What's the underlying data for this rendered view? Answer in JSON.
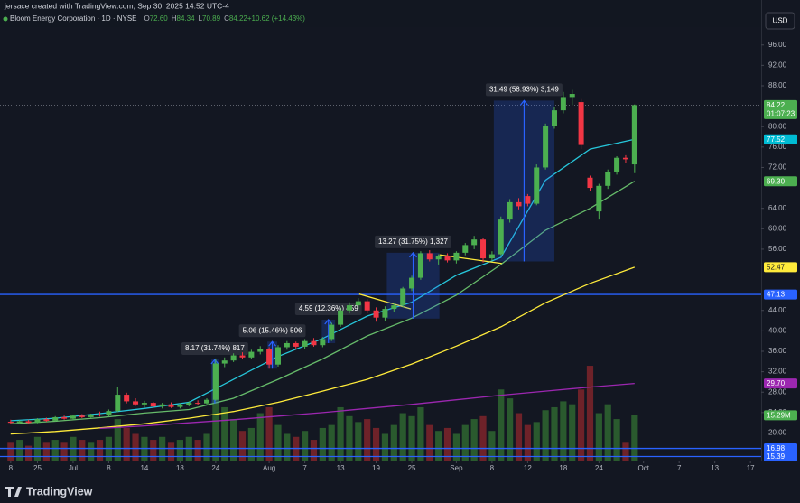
{
  "header": {
    "credit": "jersace created with TradingView.com, Sep 30, 2025 14:52 UTC-4",
    "symbol": "Bloom Energy Corporation · 1D · NYSE",
    "ohlc": [
      {
        "key": "O",
        "value": "72.60"
      },
      {
        "key": "H",
        "value": "84.34"
      },
      {
        "key": "L",
        "value": "70.89"
      },
      {
        "key": "C",
        "value": "84.22"
      },
      {
        "key": "",
        "value": "+10.62 (+14.43%)"
      }
    ],
    "currency": "USD"
  },
  "brand": "TradingView",
  "chart_data": {
    "type": "candlestick",
    "xlim": [
      -1.2,
      84.2
    ],
    "ylim": [
      14.6,
      104.8
    ],
    "grid": false,
    "up_color": "#4caf50",
    "down_color": "#f23645",
    "xticks": [
      {
        "value": 0,
        "label": "8"
      },
      {
        "value": 3,
        "label": "25"
      },
      {
        "value": 7,
        "label": "Jul"
      },
      {
        "value": 11,
        "label": "8"
      },
      {
        "value": 15,
        "label": "14"
      },
      {
        "value": 19,
        "label": "18"
      },
      {
        "value": 23,
        "label": "24"
      },
      {
        "value": 29,
        "label": "Aug"
      },
      {
        "value": 33,
        "label": "7"
      },
      {
        "value": 37,
        "label": "13"
      },
      {
        "value": 41,
        "label": "19"
      },
      {
        "value": 45,
        "label": "25"
      },
      {
        "value": 50,
        "label": "Sep"
      },
      {
        "value": 54,
        "label": "8"
      },
      {
        "value": 58,
        "label": "12"
      },
      {
        "value": 62,
        "label": "18"
      },
      {
        "value": 66,
        "label": "24"
      },
      {
        "value": 71,
        "label": "Oct"
      },
      {
        "value": 75,
        "label": "7"
      },
      {
        "value": 79,
        "label": "13"
      },
      {
        "value": 83,
        "label": "17"
      }
    ],
    "yticks": [
      {
        "value": 20,
        "label": "20.00"
      },
      {
        "value": 24,
        "label": "24.00"
      },
      {
        "value": 28,
        "label": "28.00"
      },
      {
        "value": 32,
        "label": "32.00"
      },
      {
        "value": 36,
        "label": "36.00"
      },
      {
        "value": 40,
        "label": "40.00"
      },
      {
        "value": 44,
        "label": "44.00"
      },
      {
        "value": 56,
        "label": "56.00"
      },
      {
        "value": 60,
        "label": "60.00"
      },
      {
        "value": 64,
        "label": "64.00"
      },
      {
        "value": 72,
        "label": "72.00"
      },
      {
        "value": 76,
        "label": "76.00"
      },
      {
        "value": 80,
        "label": "80.00"
      },
      {
        "value": 88,
        "label": "88.00"
      },
      {
        "value": 92,
        "label": "92.00"
      },
      {
        "value": 96,
        "label": "96.00"
      }
    ],
    "candles": [
      [
        22.2,
        22.6,
        21.8,
        22.0
      ],
      [
        22.0,
        22.5,
        21.7,
        22.3
      ],
      [
        22.3,
        22.6,
        21.8,
        22.0
      ],
      [
        22.0,
        22.9,
        21.9,
        22.7
      ],
      [
        22.7,
        23.0,
        22.2,
        22.4
      ],
      [
        22.4,
        23.3,
        22.3,
        23.1
      ],
      [
        23.1,
        23.4,
        22.6,
        22.8
      ],
      [
        22.8,
        23.6,
        22.7,
        23.4
      ],
      [
        23.4,
        23.7,
        22.9,
        23.1
      ],
      [
        23.1,
        23.8,
        23.0,
        23.6
      ],
      [
        23.6,
        24.2,
        23.2,
        23.5
      ],
      [
        23.5,
        24.6,
        23.2,
        24.3
      ],
      [
        24.3,
        29.0,
        24.1,
        27.5
      ],
      [
        27.5,
        27.9,
        25.8,
        26.2
      ],
      [
        26.2,
        26.8,
        25.3,
        25.6
      ],
      [
        25.6,
        26.3,
        25.0,
        25.9
      ],
      [
        25.9,
        26.1,
        24.9,
        25.2
      ],
      [
        25.2,
        25.9,
        24.8,
        25.6
      ],
      [
        25.6,
        26.0,
        24.9,
        25.1
      ],
      [
        25.1,
        25.8,
        24.8,
        25.5
      ],
      [
        25.5,
        26.2,
        25.2,
        25.9
      ],
      [
        25.9,
        26.4,
        25.5,
        25.8
      ],
      [
        25.8,
        26.8,
        25.6,
        26.5
      ],
      [
        26.5,
        34.6,
        26.3,
        33.6
      ],
      [
        33.6,
        34.8,
        32.9,
        34.2
      ],
      [
        34.2,
        35.6,
        33.9,
        35.2
      ],
      [
        35.2,
        35.8,
        34.4,
        34.8
      ],
      [
        34.8,
        36.3,
        34.5,
        35.9
      ],
      [
        35.9,
        37.0,
        35.4,
        36.4
      ],
      [
        36.4,
        36.8,
        32.6,
        33.4
      ],
      [
        33.4,
        37.2,
        33.0,
        36.8
      ],
      [
        36.8,
        38.0,
        36.3,
        37.6
      ],
      [
        37.6,
        37.9,
        36.4,
        36.9
      ],
      [
        36.9,
        38.4,
        36.5,
        38.0
      ],
      [
        38.0,
        38.6,
        36.9,
        37.2
      ],
      [
        37.2,
        38.8,
        36.8,
        38.4
      ],
      [
        38.4,
        41.6,
        38.0,
        41.2
      ],
      [
        41.2,
        44.6,
        40.8,
        44.0
      ],
      [
        44.0,
        45.6,
        43.4,
        45.0
      ],
      [
        45.0,
        46.4,
        44.3,
        45.8
      ],
      [
        45.8,
        46.2,
        43.4,
        44.0
      ],
      [
        44.0,
        44.6,
        41.8,
        42.6
      ],
      [
        42.6,
        44.8,
        42.0,
        44.3
      ],
      [
        44.3,
        45.4,
        43.7,
        45.0
      ],
      [
        45.0,
        48.6,
        44.6,
        48.3
      ],
      [
        48.3,
        50.8,
        47.8,
        50.4
      ],
      [
        50.4,
        55.6,
        50.0,
        55.2
      ],
      [
        55.2,
        55.8,
        53.6,
        54.0
      ],
      [
        54.0,
        55.0,
        53.0,
        54.6
      ],
      [
        54.6,
        55.2,
        53.4,
        53.8
      ],
      [
        53.8,
        55.6,
        53.2,
        55.3
      ],
      [
        55.3,
        57.2,
        54.8,
        56.8
      ],
      [
        56.8,
        58.6,
        56.0,
        57.9
      ],
      [
        57.9,
        58.2,
        53.4,
        54.2
      ],
      [
        54.2,
        55.6,
        53.8,
        55.0
      ],
      [
        55.0,
        62.4,
        54.8,
        61.8
      ],
      [
        61.8,
        65.8,
        61.2,
        65.2
      ],
      [
        65.2,
        66.0,
        63.8,
        64.4
      ],
      [
        66.4,
        66.8,
        64.4,
        64.9
      ],
      [
        64.9,
        72.6,
        64.6,
        72.0
      ],
      [
        72.0,
        80.6,
        71.6,
        80.2
      ],
      [
        80.2,
        83.8,
        79.6,
        83.2
      ],
      [
        83.2,
        86.8,
        82.6,
        85.8
      ],
      [
        85.8,
        87.2,
        84.2,
        86.4
      ],
      [
        84.8,
        85.4,
        75.6,
        76.4
      ],
      [
        70.0,
        70.4,
        67.4,
        68.0
      ],
      [
        63.4,
        68.8,
        61.8,
        68.4
      ],
      [
        68.4,
        71.6,
        67.8,
        71.2
      ],
      [
        71.2,
        74.2,
        70.6,
        73.9
      ],
      [
        73.9,
        74.4,
        72.8,
        73.6
      ],
      [
        72.6,
        84.34,
        70.89,
        84.22
      ]
    ],
    "volumes": [
      6,
      7,
      5,
      8,
      6,
      7,
      6,
      8,
      7,
      6,
      7,
      8,
      14,
      11,
      9,
      8,
      7,
      8,
      6,
      7,
      8,
      7,
      9,
      33,
      18,
      14,
      10,
      11,
      16,
      18,
      12,
      9,
      8,
      10,
      7,
      11,
      12,
      18,
      15,
      13,
      14,
      11,
      9,
      12,
      16,
      15,
      18,
      12,
      10,
      11,
      9,
      12,
      14,
      15,
      10,
      24,
      21,
      16,
      12,
      13,
      17,
      18,
      20,
      19,
      24,
      32,
      16,
      19,
      14,
      6,
      15.29
    ],
    "volume_ylim": [
      0,
      50
    ],
    "volume_tag": {
      "value": 15.29,
      "label": "15.29M",
      "color": "#4caf50"
    },
    "ma_x": [
      0,
      5,
      10,
      15,
      20,
      25,
      30,
      35,
      40,
      45,
      50,
      55,
      60,
      65,
      70
    ],
    "series": [
      {
        "color": "#26c6da",
        "values": [
          22.4,
          22.9,
          23.8,
          24.8,
          26.0,
          30.5,
          35.0,
          38.5,
          42.9,
          45.6,
          50.9,
          54.4,
          69.5,
          75.6,
          77.52
        ]
      },
      {
        "color": "#66bb6a",
        "values": [
          21.8,
          22.3,
          23.0,
          23.9,
          24.6,
          26.8,
          30.5,
          34.5,
          39.0,
          42.5,
          47.0,
          53.0,
          59.7,
          64.0,
          69.3
        ]
      },
      {
        "color": "#ffeb3b",
        "values": [
          19.8,
          20.3,
          21.0,
          21.8,
          22.9,
          24.2,
          26.0,
          28.2,
          30.5,
          33.5,
          37.0,
          40.8,
          45.5,
          49.3,
          52.47
        ]
      },
      {
        "color": "#9c27b0",
        "values": [
          null,
          null,
          20.9,
          21.4,
          22.0,
          22.6,
          23.3,
          24.0,
          24.8,
          25.6,
          26.5,
          27.4,
          28.2,
          29.0,
          29.7
        ]
      }
    ],
    "price_tags": [
      {
        "value": 84.22,
        "label": "84.22",
        "sub": "01:07:23",
        "color": "#4caf50",
        "text_color": "#ffffff",
        "line": "dotted"
      },
      {
        "value": 77.52,
        "label": "77.52",
        "color": "#00bcd4",
        "text_color": "#ffffff"
      },
      {
        "value": 69.3,
        "label": "69.30",
        "color": "#4caf50",
        "text_color": "#ffffff"
      },
      {
        "value": 52.47,
        "label": "52.47",
        "color": "#ffeb3b",
        "text_color": "#131722"
      },
      {
        "value": 47.13,
        "label": "47.13",
        "color": "#2962ff",
        "text_color": "#ffffff",
        "line": "solid"
      },
      {
        "value": 29.7,
        "label": "29.70",
        "color": "#9c27b0",
        "text_color": "#ffffff"
      },
      {
        "value": 16.98,
        "label": "16.98",
        "color": "#2962ff",
        "text_color": "#ffffff",
        "line": "solid"
      },
      {
        "value": 15.39,
        "label": "15.39",
        "color": "#2962ff",
        "text_color": "#ffffff",
        "line": "solid"
      }
    ],
    "measures": [
      {
        "label": "8.17 (31.74%) 817",
        "from": 25.8,
        "to": 34.4,
        "start": 22.5,
        "end": 23.3
      },
      {
        "label": "5.06 (15.46%) 506",
        "from": 32.6,
        "to": 37.9,
        "start": 28.8,
        "end": 29.9
      },
      {
        "label": "4.59 (12.36%) 459",
        "from": 37.6,
        "to": 42.2,
        "start": 34.9,
        "end": 36.4
      },
      {
        "label": "13.27 (31.75%) 1,327",
        "from": 42.4,
        "to": 55.3,
        "start": 42.2,
        "end": 48.1
      },
      {
        "label": "31.49 (58.93%) 3,149",
        "from": 53.6,
        "to": 85.1,
        "start": 54.2,
        "end": 61
      }
    ],
    "trendlines": [
      {
        "x": [
          39.1,
          44.9
        ],
        "y": [
          47.2,
          44.3
        ],
        "color": "#ffeb3b"
      },
      {
        "x": [
          48.1,
          55.1
        ],
        "y": [
          54.9,
          53.2
        ],
        "color": "#ffeb3b"
      }
    ]
  }
}
